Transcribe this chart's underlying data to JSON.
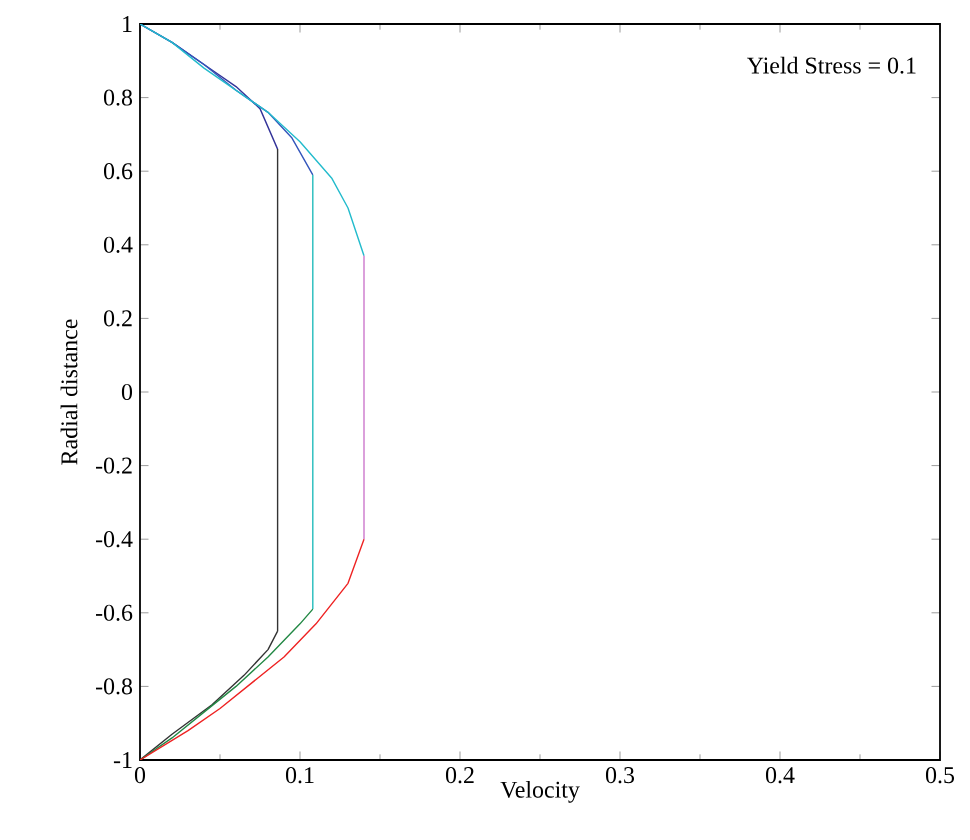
{
  "chart_data": {
    "type": "line",
    "xlabel": "Velocity",
    "ylabel": "Radial  distance",
    "annotations": [
      "Yield Stress = 0.1"
    ],
    "xlim": [
      0,
      0.5
    ],
    "ylim": [
      -1,
      1
    ],
    "xticks": [
      0,
      0.1,
      0.2,
      0.3,
      0.4,
      0.5
    ],
    "yticks": [
      -1,
      -0.8,
      -0.6,
      -0.4,
      -0.2,
      0,
      0.2,
      0.4,
      0.6,
      0.8,
      1
    ],
    "grid": false,
    "marker": "none",
    "line_style": "solid",
    "series": [
      {
        "color": "#333399",
        "x": [
          0,
          0.02,
          0.04,
          0.06,
          0.075,
          0.086
        ],
        "values": [
          1,
          0.95,
          0.89,
          0.83,
          0.77,
          0.66
        ]
      },
      {
        "color": "#333333",
        "x": [
          0.086,
          0.086
        ],
        "values": [
          0.66,
          -0.65
        ]
      },
      {
        "color": "#333333",
        "x": [
          0.086,
          0.08,
          0.065,
          0.045,
          0.02,
          0
        ],
        "values": [
          -0.65,
          -0.7,
          -0.77,
          -0.85,
          -0.93,
          -1
        ]
      },
      {
        "color": "#3355bb",
        "x": [
          0,
          0.02,
          0.04,
          0.06,
          0.08,
          0.095,
          0.108
        ],
        "values": [
          1,
          0.95,
          0.89,
          0.82,
          0.76,
          0.69,
          0.59
        ]
      },
      {
        "color": "#22bbbb",
        "x": [
          0.108,
          0.108
        ],
        "values": [
          0.59,
          -0.59
        ]
      },
      {
        "color": "#228844",
        "x": [
          0.108,
          0.1,
          0.08,
          0.06,
          0.04,
          0.02,
          0
        ],
        "values": [
          -0.59,
          -0.63,
          -0.72,
          -0.8,
          -0.87,
          -0.94,
          -1
        ]
      },
      {
        "color": "#22bbcc",
        "x": [
          0,
          0.02,
          0.04,
          0.06,
          0.08,
          0.1,
          0.12,
          0.13,
          0.14
        ],
        "values": [
          1,
          0.95,
          0.88,
          0.82,
          0.76,
          0.68,
          0.58,
          0.5,
          0.37
        ]
      },
      {
        "color": "#cc77cc",
        "x": [
          0.14,
          0.14
        ],
        "values": [
          0.37,
          -0.4
        ]
      },
      {
        "color": "#ee2222",
        "x": [
          0.14,
          0.13,
          0.11,
          0.09,
          0.07,
          0.05,
          0.03,
          0
        ],
        "values": [
          -0.4,
          -0.52,
          -0.63,
          -0.72,
          -0.79,
          -0.86,
          -0.92,
          -1
        ]
      }
    ]
  }
}
